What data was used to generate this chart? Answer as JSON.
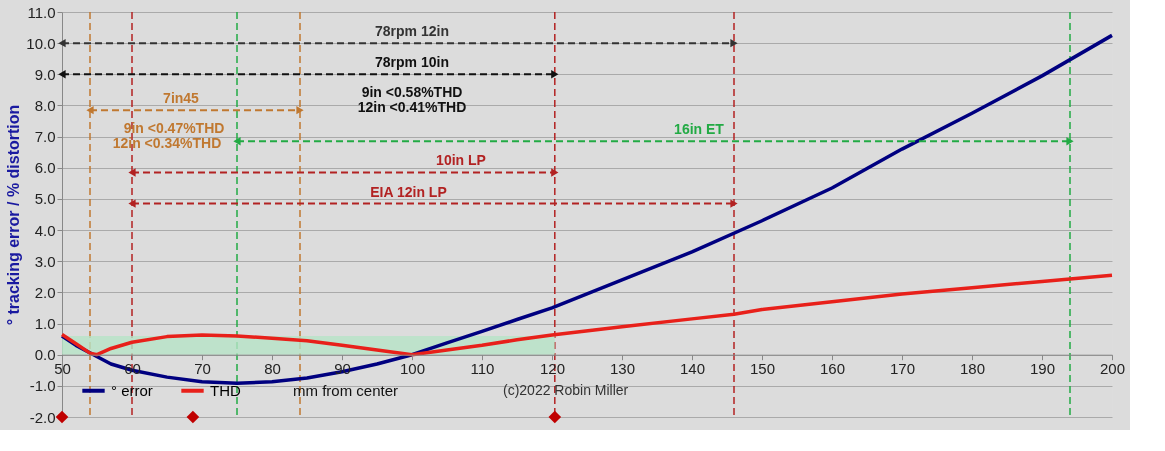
{
  "chart_data": {
    "type": "line",
    "ylabel": "° tracking error  /  % distortion",
    "xlabel": "mm from center",
    "xlim": [
      50,
      200
    ],
    "xticks": [
      50,
      60,
      70,
      80,
      90,
      100,
      110,
      120,
      130,
      140,
      150,
      160,
      170,
      180,
      190,
      200
    ],
    "ylim": [
      -2,
      11
    ],
    "yticks": [
      {
        "value": -2,
        "label": "-2.0"
      },
      {
        "value": -1,
        "label": "-1.0"
      },
      {
        "value": 0,
        "label": "0.0"
      },
      {
        "value": 1,
        "label": "1.0"
      },
      {
        "value": 2,
        "label": "2.0"
      },
      {
        "value": 3,
        "label": "3.0"
      },
      {
        "value": 4,
        "label": "4.0"
      },
      {
        "value": 5,
        "label": "5.0"
      },
      {
        "value": 6,
        "label": "6.0"
      },
      {
        "value": 7,
        "label": "7.0"
      },
      {
        "value": 8,
        "label": "8.0"
      },
      {
        "value": 9,
        "label": "9.0"
      },
      {
        "value": 10,
        "label": "10.0"
      },
      {
        "value": 11,
        "label": "11.0"
      }
    ],
    "grid": "y",
    "legend": "bottom left",
    "line_style": "solid",
    "series": [
      {
        "type": "area",
        "color": "#b7e4c7",
        "x": [
          50,
          120.4
        ],
        "values": [
          0.6,
          0.6
        ]
      },
      {
        "name": "° error",
        "color": "#000080",
        "x": [
          50,
          52,
          54.5,
          57,
          60,
          65,
          70,
          75,
          80,
          85,
          90,
          95,
          100,
          105,
          110,
          115,
          120,
          130,
          140,
          150,
          160,
          170,
          180,
          190,
          200
        ],
        "values": [
          0.6,
          0.3,
          0,
          -0.3,
          -0.5,
          -0.72,
          -0.87,
          -0.92,
          -0.87,
          -0.75,
          -0.55,
          -0.3,
          0,
          0.38,
          0.75,
          1.13,
          1.5,
          2.4,
          3.3,
          4.3,
          5.35,
          6.6,
          7.75,
          8.95,
          10.25
        ]
      },
      {
        "name": "THD",
        "color": "#e8201a",
        "x": [
          50,
          52,
          54,
          55,
          57,
          60,
          65,
          70,
          75,
          80,
          85,
          90,
          95,
          100,
          105,
          110,
          115,
          120,
          130,
          140,
          146,
          150,
          160,
          170,
          180,
          190,
          194,
          200
        ],
        "values": [
          0.65,
          0.35,
          0.05,
          0,
          0.2,
          0.4,
          0.58,
          0.63,
          0.6,
          0.53,
          0.45,
          0.3,
          0.15,
          0,
          0.15,
          0.3,
          0.48,
          0.63,
          0.9,
          1.15,
          1.3,
          1.45,
          1.7,
          1.95,
          2.15,
          2.35,
          2.43,
          2.55
        ]
      },
      {
        "type": "line",
        "line_style": "dashed",
        "marker": "triangle",
        "color": "#333333",
        "x": [
          50,
          146
        ],
        "values": [
          10,
          10
        ]
      },
      {
        "type": "line",
        "line_style": "dashed",
        "marker": "triangle",
        "color": "#111111",
        "x": [
          50,
          120.4
        ],
        "values": [
          9,
          9
        ]
      },
      {
        "type": "line",
        "line_style": "dashed",
        "marker": "triangle",
        "color": "#c07830",
        "x": [
          54,
          84
        ],
        "values": [
          7.85,
          7.85
        ]
      },
      {
        "type": "line",
        "line_style": "dashed",
        "marker": "triangle",
        "color": "#22aa44",
        "x": [
          75,
          194
        ],
        "values": [
          6.85,
          6.85
        ]
      },
      {
        "type": "line",
        "line_style": "dashed",
        "marker": "triangle",
        "color": "#b22222",
        "x": [
          60,
          120.4
        ],
        "values": [
          5.85,
          5.85
        ]
      },
      {
        "type": "line",
        "line_style": "dashed",
        "marker": "triangle",
        "color": "#b22222",
        "x": [
          60,
          146
        ],
        "values": [
          4.85,
          4.85
        ]
      },
      {
        "type": "scatter",
        "color": "#c00000",
        "x": [
          50,
          68.7,
          120.4
        ],
        "values": [
          -2,
          -2,
          -2
        ]
      }
    ],
    "ref_lines": [
      {
        "axis": "x",
        "value": 54,
        "color": "#c07830",
        "line_style": "dashed"
      },
      {
        "axis": "x",
        "value": 60,
        "color": "#b22222",
        "line_style": "dashed"
      },
      {
        "axis": "x",
        "value": 75,
        "color": "#22aa44",
        "line_style": "dashed"
      },
      {
        "axis": "x",
        "value": 84,
        "color": "#c07830",
        "line_style": "dashed"
      },
      {
        "axis": "x",
        "value": 120.4,
        "color": "#b22222",
        "line_style": "dashed"
      },
      {
        "axis": "x",
        "value": 146,
        "color": "#b22222",
        "line_style": "dashed"
      },
      {
        "axis": "x",
        "value": 194,
        "color": "#22aa44",
        "line_style": "dashed"
      }
    ],
    "annotations": [
      {
        "text": "78rpm 12in",
        "x": 100,
        "y": 10
      },
      {
        "text": "78rpm 10in",
        "x": 100,
        "y": 9
      },
      {
        "text": "9in <0.58%THD",
        "x": 100,
        "y": 9
      },
      {
        "text": "12in <0.41%THD",
        "x": 100,
        "y": 9
      },
      {
        "text": "7in45",
        "x": 67,
        "y": 7.85
      },
      {
        "text": "9in <0.47%THD",
        "x": 66,
        "y": 7.85
      },
      {
        "text": "12in <0.34%THD",
        "x": 65,
        "y": 7.85
      },
      {
        "text": "16in ET",
        "x": 141,
        "y": 6.85
      },
      {
        "text": "10in LP",
        "x": 107,
        "y": 5.85
      },
      {
        "text": "EIA 12in LP",
        "x": 99.5,
        "y": 4.85
      },
      "(c)2022 Robin Miller"
    ]
  }
}
